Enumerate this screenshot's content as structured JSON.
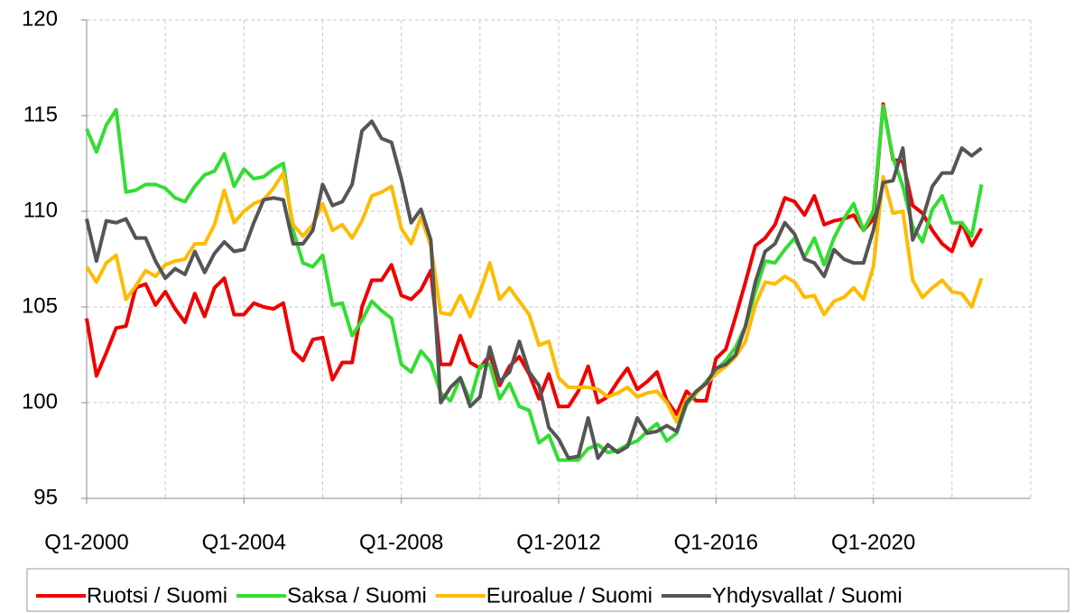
{
  "chart_data": {
    "type": "line",
    "categories": [
      "Q1-2000",
      null,
      null,
      null,
      null,
      null,
      null,
      null,
      null,
      null,
      null,
      null,
      null,
      null,
      null,
      null,
      "Q1-2004",
      null,
      null,
      null,
      null,
      null,
      null,
      null,
      null,
      null,
      null,
      null,
      null,
      null,
      null,
      null,
      "Q1-2008",
      null,
      null,
      null,
      null,
      null,
      null,
      null,
      null,
      null,
      null,
      null,
      null,
      null,
      null,
      null,
      "Q1-2012",
      null,
      null,
      null,
      null,
      null,
      null,
      null,
      null,
      null,
      null,
      null,
      null,
      null,
      null,
      null,
      "Q1-2016",
      null,
      null,
      null,
      null,
      null,
      null,
      null,
      null,
      null,
      null,
      null,
      null,
      null,
      null,
      null,
      "Q1-2020",
      null,
      null,
      null,
      null,
      null,
      null,
      null,
      null,
      null,
      null,
      null
    ],
    "ylim": [
      95,
      120
    ],
    "yticks": [
      95,
      100,
      105,
      110,
      115,
      120
    ],
    "grid": true,
    "series": [
      {
        "name": "Ruotsi / Suomi",
        "color": "#ee0000",
        "values": [
          104.4,
          101.4,
          102.6,
          103.9,
          104.0,
          106.0,
          106.2,
          105.1,
          105.8,
          104.9,
          104.2,
          105.7,
          104.5,
          106.0,
          106.5,
          104.6,
          104.6,
          105.2,
          105.0,
          104.9,
          105.2,
          102.7,
          102.2,
          103.3,
          103.4,
          101.2,
          102.1,
          102.1,
          105.0,
          106.4,
          106.4,
          107.2,
          105.6,
          105.4,
          105.9,
          106.9,
          102.0,
          102.0,
          103.5,
          102.1,
          101.8,
          102.5,
          100.9,
          101.9,
          102.4,
          101.5,
          100.2,
          101.5,
          99.8,
          99.8,
          100.6,
          101.9,
          100.0,
          100.3,
          101.1,
          101.8,
          100.7,
          101.1,
          101.6,
          100.1,
          99.4,
          100.6,
          100.1,
          100.1,
          102.3,
          102.8,
          104.5,
          106.3,
          108.2,
          108.6,
          109.3,
          110.7,
          110.5,
          109.8,
          110.8,
          109.3,
          109.5,
          109.6,
          109.8,
          109.0,
          109.6,
          115.6,
          112.7,
          112.6,
          110.3,
          109.9,
          109.0,
          108.3,
          107.9,
          109.4,
          108.2,
          109.1
        ]
      },
      {
        "name": "Saksa / Suomi",
        "color": "#33dd33",
        "values": [
          114.3,
          113.1,
          114.5,
          115.3,
          111.0,
          111.1,
          111.4,
          111.4,
          111.2,
          110.7,
          110.5,
          111.3,
          111.9,
          112.1,
          113.0,
          111.3,
          112.2,
          111.7,
          111.8,
          112.2,
          112.5,
          109.0,
          107.3,
          107.1,
          107.7,
          105.1,
          105.2,
          103.5,
          104.3,
          105.3,
          104.8,
          104.4,
          102.0,
          101.6,
          102.7,
          102.1,
          100.5,
          100.1,
          101.3,
          100.1,
          101.9,
          102.0,
          100.2,
          101.0,
          99.8,
          99.6,
          97.9,
          98.3,
          97.0,
          97.0,
          97.0,
          97.6,
          97.8,
          97.4,
          97.5,
          97.8,
          98.0,
          98.5,
          98.9,
          98.0,
          98.4,
          99.9,
          100.5,
          101.1,
          101.7,
          102.2,
          102.9,
          104.0,
          105.8,
          107.4,
          107.3,
          108.0,
          108.6,
          107.6,
          108.6,
          107.2,
          108.6,
          109.6,
          110.4,
          109.0,
          110.0,
          115.5,
          112.8,
          111.3,
          109.2,
          108.4,
          110.1,
          110.8,
          109.4,
          109.4,
          108.7,
          111.4
        ]
      },
      {
        "name": "Euroalue / Suomi",
        "color": "#ffbb00",
        "values": [
          107.1,
          106.3,
          107.3,
          107.7,
          105.4,
          106.1,
          106.9,
          106.6,
          107.2,
          107.4,
          107.5,
          108.3,
          108.3,
          109.3,
          111.1,
          109.4,
          110.0,
          110.4,
          110.6,
          111.2,
          112.0,
          109.3,
          108.7,
          109.3,
          110.4,
          109.0,
          109.3,
          108.6,
          109.5,
          110.8,
          111.0,
          111.3,
          109.1,
          108.3,
          109.7,
          108.2,
          104.7,
          104.6,
          105.6,
          104.5,
          105.8,
          107.3,
          105.4,
          106.0,
          105.3,
          104.6,
          103.0,
          103.2,
          101.3,
          100.8,
          100.8,
          100.8,
          100.7,
          100.3,
          100.5,
          100.8,
          100.3,
          100.5,
          100.6,
          100.0,
          99.0,
          100.2,
          100.5,
          101.0,
          101.5,
          101.9,
          102.4,
          103.2,
          105.1,
          106.3,
          106.2,
          106.6,
          106.3,
          105.5,
          105.6,
          104.6,
          105.3,
          105.5,
          106.0,
          105.4,
          107.1,
          111.8,
          109.9,
          110.0,
          106.4,
          105.5,
          106.0,
          106.4,
          105.8,
          105.7,
          105.0,
          106.5
        ]
      },
      {
        "name": "Yhdysvallat / Suomi",
        "color": "#555555",
        "values": [
          109.6,
          107.4,
          109.5,
          109.4,
          109.6,
          108.6,
          108.6,
          107.4,
          106.5,
          107.0,
          106.7,
          107.9,
          106.8,
          107.8,
          108.4,
          107.9,
          108.0,
          109.4,
          110.6,
          110.7,
          110.6,
          108.3,
          108.3,
          109.0,
          111.4,
          110.3,
          110.5,
          111.4,
          114.2,
          114.7,
          113.8,
          113.6,
          111.7,
          109.4,
          110.1,
          108.5,
          100.0,
          100.8,
          101.3,
          99.8,
          100.3,
          102.9,
          101.1,
          101.6,
          103.2,
          101.6,
          100.9,
          98.7,
          98.1,
          97.1,
          97.2,
          99.2,
          97.1,
          97.8,
          97.4,
          97.7,
          99.2,
          98.4,
          98.5,
          98.8,
          98.5,
          100.0,
          100.6,
          101.0,
          101.8,
          102.0,
          102.5,
          104.0,
          106.3,
          107.9,
          108.3,
          109.4,
          108.8,
          107.5,
          107.3,
          106.6,
          108.0,
          107.5,
          107.3,
          107.3,
          109.0,
          111.5,
          111.6,
          113.3,
          108.5,
          109.6,
          111.3,
          112.0,
          112.0,
          113.3,
          112.9,
          113.3
        ]
      }
    ]
  }
}
